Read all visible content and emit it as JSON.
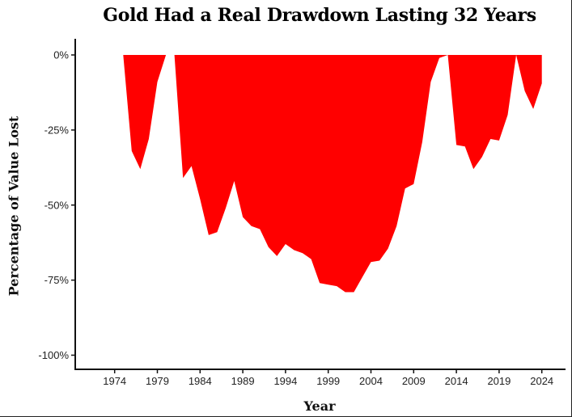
{
  "chart_data": {
    "type": "area",
    "title": "Gold Had a Real Drawdown Lasting 32 Years",
    "xlabel": "Year",
    "ylabel": "Percentage of Value Lost",
    "xlim": [
      1971,
      2027
    ],
    "ylim": [
      -100,
      0
    ],
    "x_ticks": [
      1974,
      1979,
      1984,
      1989,
      1994,
      1999,
      2004,
      2009,
      2014,
      2019,
      2024
    ],
    "y_ticks": [
      0,
      -25,
      -50,
      -75,
      -100
    ],
    "y_tick_labels": [
      "0%",
      "-25%",
      "-50%",
      "-75%",
      "-100%"
    ],
    "grid": false,
    "legend": null,
    "fill_color": "#ff0000",
    "series": [
      {
        "name": "Real drawdown",
        "x": [
          1975,
          1976,
          1977,
          1978,
          1979,
          1980,
          1981,
          1982,
          1983,
          1984,
          1985,
          1986,
          1987,
          1988,
          1989,
          1990,
          1991,
          1992,
          1993,
          1994,
          1995,
          1996,
          1997,
          1998,
          1999,
          2000,
          2001,
          2002,
          2003,
          2004,
          2005,
          2006,
          2007,
          2008,
          2009,
          2010,
          2011,
          2012,
          2013,
          2014,
          2015,
          2016,
          2017,
          2018,
          2019,
          2020,
          2021,
          2022,
          2023,
          2024
        ],
        "values": [
          0,
          -32,
          -38,
          -28,
          -9,
          0,
          0,
          -41,
          -37,
          -48,
          -60,
          -59,
          -51,
          -42,
          -54,
          -57,
          -58,
          -64,
          -67,
          -63,
          -65,
          -66,
          -68,
          -76,
          -76.5,
          -77,
          -79,
          -79,
          -74,
          -69,
          -68.5,
          -64.5,
          -57,
          -44.5,
          -43,
          -29,
          -9,
          -1,
          0,
          -30,
          -30.5,
          -38,
          -34,
          -28,
          -28.5,
          -20,
          0,
          -12,
          -18,
          -9.5
        ]
      }
    ]
  }
}
